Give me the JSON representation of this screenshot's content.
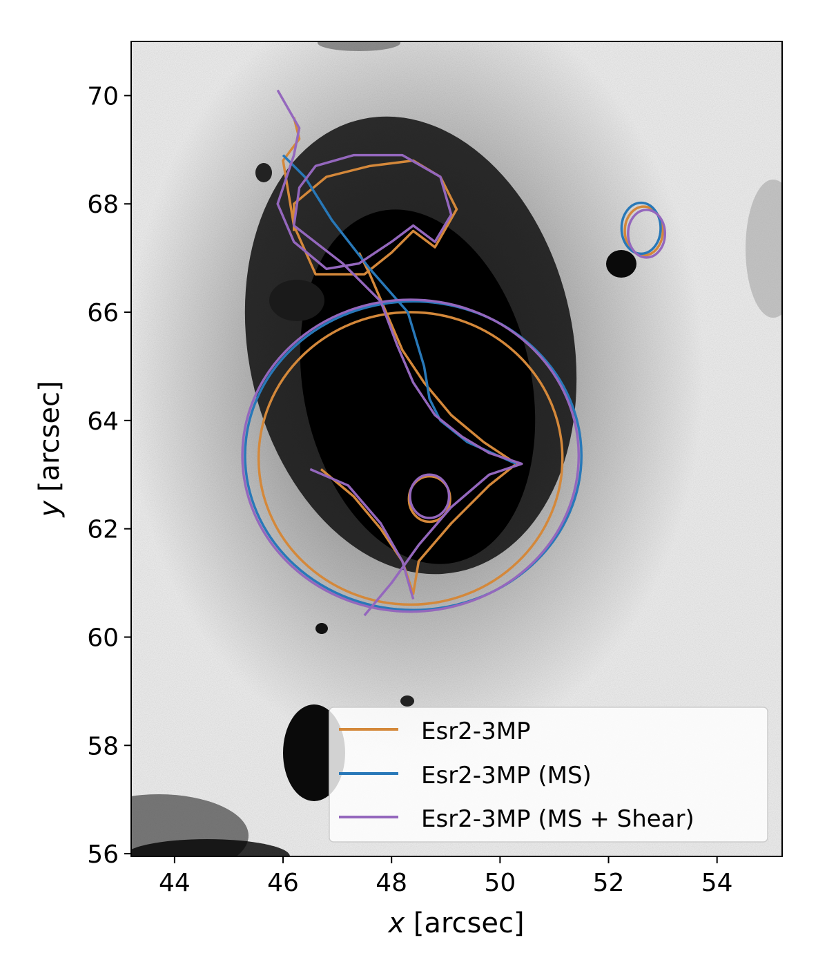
{
  "chart_data": {
    "type": "line",
    "xlabel_var": "x",
    "xlabel_unit": " [arcsec]",
    "ylabel_var": "y",
    "ylabel_unit": " [arcsec]",
    "xlim": [
      43.2,
      55.2
    ],
    "ylim": [
      55.95,
      71.0
    ],
    "xticks": [
      44,
      46,
      48,
      50,
      52,
      54
    ],
    "yticks": [
      56,
      58,
      60,
      62,
      64,
      66,
      68,
      70
    ],
    "background": "grayscale galaxy image",
    "grid": false,
    "legend_position": "lower-right",
    "series": [
      {
        "name": "Esr2-3MP",
        "color": "#d4883a",
        "curves": [
          {
            "kind": "ellipse",
            "cx": 48.35,
            "cy": 63.3,
            "rx": 2.8,
            "ry": 2.7
          },
          {
            "kind": "polyline",
            "points": [
              [
                46.2,
                69.6
              ],
              [
                46.3,
                69.2
              ],
              [
                46.0,
                68.8
              ],
              [
                46.2,
                67.6
              ],
              [
                46.6,
                66.7
              ],
              [
                47.5,
                66.7
              ],
              [
                48.0,
                67.1
              ],
              [
                48.4,
                67.5
              ],
              [
                48.8,
                67.2
              ],
              [
                49.2,
                67.9
              ],
              [
                48.9,
                68.5
              ],
              [
                48.4,
                68.8
              ],
              [
                47.6,
                68.7
              ],
              [
                46.8,
                68.5
              ],
              [
                46.2,
                68.0
              ],
              [
                46.2,
                67.5
              ]
            ]
          },
          {
            "kind": "polyline",
            "points": [
              [
                46.7,
                63.1
              ],
              [
                47.3,
                62.6
              ],
              [
                47.8,
                62.0
              ],
              [
                48.2,
                61.4
              ],
              [
                48.4,
                60.8
              ],
              [
                48.5,
                61.4
              ],
              [
                49.1,
                62.1
              ],
              [
                49.8,
                62.8
              ],
              [
                50.3,
                63.2
              ],
              [
                49.7,
                63.6
              ],
              [
                49.1,
                64.1
              ],
              [
                48.6,
                64.7
              ],
              [
                48.2,
                65.3
              ],
              [
                47.9,
                66.0
              ],
              [
                47.6,
                66.7
              ],
              [
                47.4,
                67.1
              ]
            ]
          },
          {
            "kind": "ellipse",
            "cx": 48.7,
            "cy": 62.55,
            "rx": 0.38,
            "ry": 0.42
          },
          {
            "kind": "ellipse",
            "cx": 52.65,
            "cy": 67.5,
            "rx": 0.35,
            "ry": 0.45
          }
        ]
      },
      {
        "name": "Esr2-3MP (MS)",
        "color": "#2878b8",
        "curves": [
          {
            "kind": "ellipse",
            "cx": 48.4,
            "cy": 63.35,
            "rx": 3.1,
            "ry": 2.85
          },
          {
            "kind": "polyline",
            "points": [
              [
                46.0,
                68.9
              ],
              [
                46.4,
                68.5
              ],
              [
                46.9,
                67.7
              ],
              [
                47.6,
                66.8
              ],
              [
                48.3,
                66.0
              ],
              [
                48.6,
                65.0
              ],
              [
                48.7,
                64.4
              ],
              [
                48.9,
                64.0
              ],
              [
                49.4,
                63.6
              ],
              [
                50.3,
                63.2
              ]
            ]
          },
          {
            "kind": "ellipse",
            "cx": 52.6,
            "cy": 67.55,
            "rx": 0.36,
            "ry": 0.47
          }
        ]
      },
      {
        "name": "Esr2-3MP (MS + Shear)",
        "color": "#9467bd",
        "curves": [
          {
            "kind": "ellipse",
            "cx": 48.35,
            "cy": 63.35,
            "rx": 3.1,
            "ry": 2.88
          },
          {
            "kind": "polyline",
            "points": [
              [
                45.9,
                70.1
              ],
              [
                46.3,
                69.4
              ],
              [
                46.2,
                68.9
              ],
              [
                45.9,
                68.0
              ],
              [
                46.2,
                67.3
              ],
              [
                46.8,
                66.8
              ],
              [
                47.4,
                66.9
              ],
              [
                48.0,
                67.3
              ],
              [
                48.4,
                67.6
              ],
              [
                48.8,
                67.3
              ],
              [
                49.1,
                67.8
              ],
              [
                48.9,
                68.5
              ],
              [
                48.2,
                68.9
              ],
              [
                47.3,
                68.9
              ],
              [
                46.6,
                68.7
              ],
              [
                46.3,
                68.3
              ],
              [
                46.2,
                67.6
              ],
              [
                47.1,
                66.9
              ],
              [
                47.8,
                66.2
              ],
              [
                48.1,
                65.4
              ],
              [
                48.4,
                64.7
              ],
              [
                48.8,
                64.1
              ],
              [
                49.3,
                63.7
              ],
              [
                49.8,
                63.4
              ],
              [
                50.4,
                63.2
              ],
              [
                49.8,
                63.0
              ],
              [
                49.1,
                62.4
              ],
              [
                48.5,
                61.7
              ],
              [
                48.0,
                61.0
              ],
              [
                47.5,
                60.4
              ]
            ]
          },
          {
            "kind": "polyline",
            "points": [
              [
                46.5,
                63.1
              ],
              [
                47.2,
                62.8
              ],
              [
                47.8,
                62.1
              ],
              [
                48.2,
                61.4
              ],
              [
                48.4,
                60.7
              ]
            ]
          },
          {
            "kind": "ellipse",
            "cx": 48.7,
            "cy": 62.6,
            "rx": 0.36,
            "ry": 0.4
          },
          {
            "kind": "ellipse",
            "cx": 52.7,
            "cy": 67.45,
            "rx": 0.34,
            "ry": 0.44
          }
        ]
      }
    ]
  }
}
